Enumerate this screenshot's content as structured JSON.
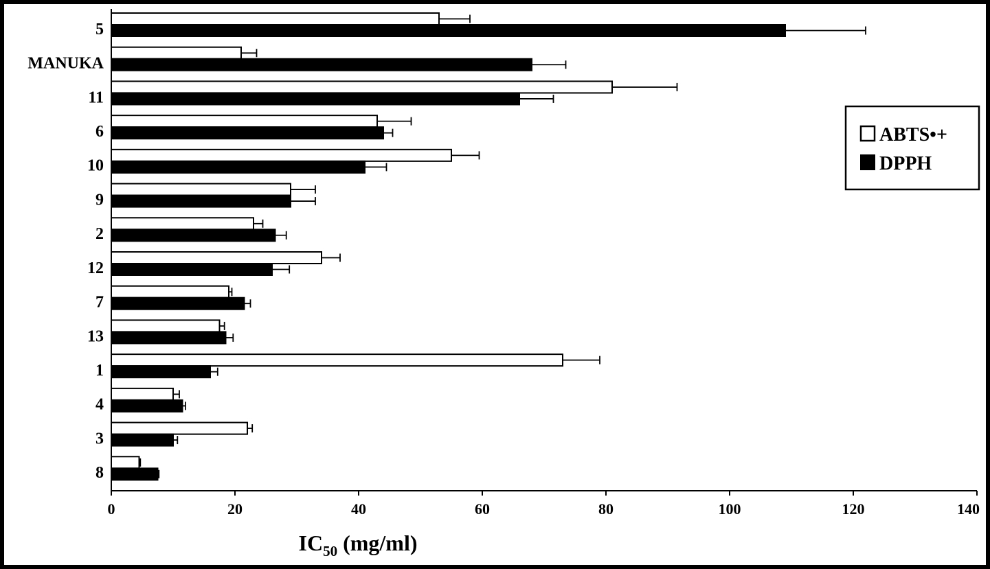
{
  "chart_data": {
    "type": "bar",
    "orientation": "horizontal",
    "categories": [
      "5",
      "MANUKA",
      "11",
      "6",
      "10",
      "9",
      "2",
      "12",
      "7",
      "13",
      "1",
      "4",
      "3",
      "8"
    ],
    "series": [
      {
        "name": "ABTS•+",
        "fill": "#ffffff",
        "values": [
          53,
          21,
          81,
          43,
          55,
          29,
          23,
          34,
          19,
          17.5,
          73,
          10,
          22,
          4.5
        ],
        "errors": [
          5,
          2.5,
          10.5,
          5.5,
          4.5,
          4,
          1.5,
          3,
          0.5,
          0.8,
          6,
          1,
          0.8,
          0.2
        ]
      },
      {
        "name": "DPPH",
        "fill": "#000000",
        "values": [
          109,
          68,
          66,
          44,
          41,
          29,
          26.5,
          26,
          21.5,
          18.5,
          16,
          11.5,
          10,
          7.5
        ],
        "errors": [
          13,
          5.5,
          5.5,
          1.5,
          3.5,
          4,
          1.8,
          2.8,
          1,
          1.2,
          1.2,
          0.5,
          0.7,
          0.2
        ]
      }
    ],
    "xlim": [
      0,
      140
    ],
    "xticks": [
      "0",
      "20",
      "40",
      "60",
      "80",
      "100",
      "120",
      "140"
    ],
    "xlabel": "IC",
    "xlabel_sub": "50",
    "xlabel_suffix": " (mg/ml)",
    "ylabel": "",
    "legend_position": "right",
    "grid": false
  }
}
